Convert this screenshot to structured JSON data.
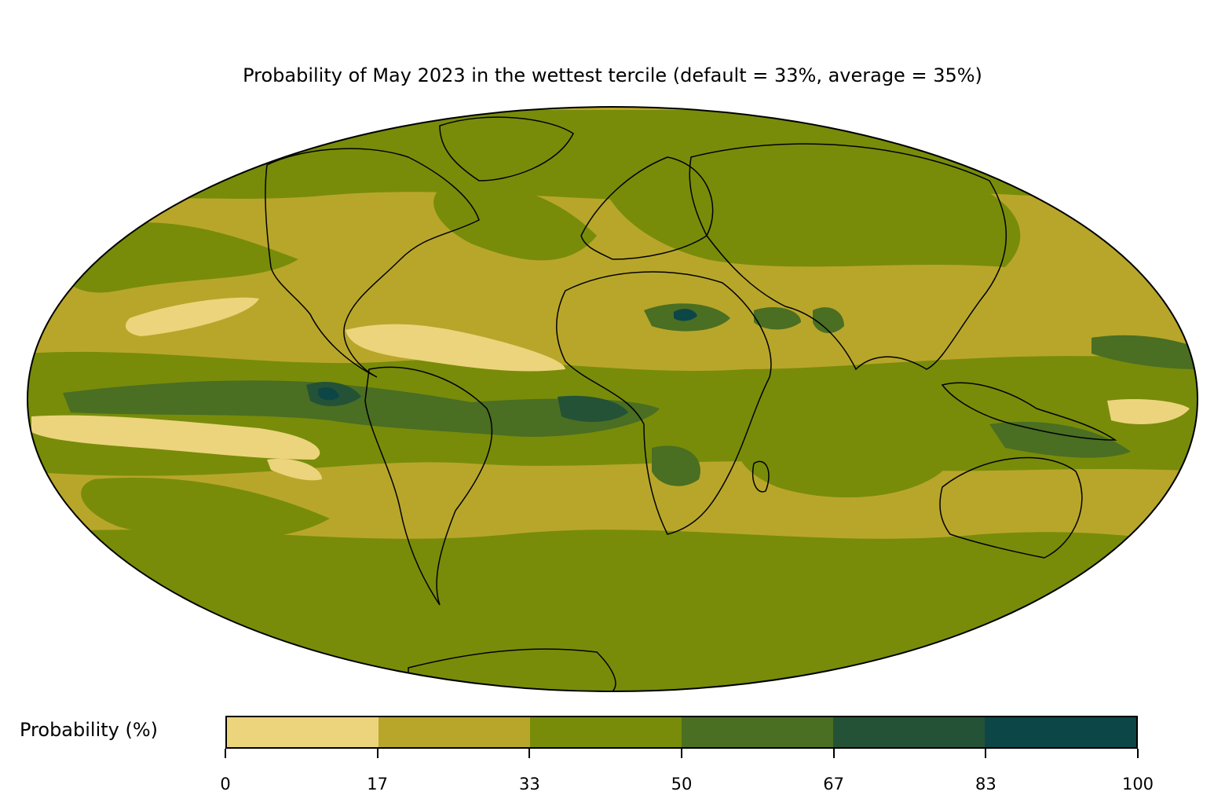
{
  "title": "Probability of May 2023 in the wettest tercile (default = 33%, average = 35%)",
  "colorbar": {
    "label": "Probability (%)",
    "ticks": [
      "0",
      "17",
      "33",
      "50",
      "67",
      "83",
      "100"
    ],
    "bins": [
      {
        "range": [
          0,
          17
        ],
        "color": "#ecd47c"
      },
      {
        "range": [
          17,
          33
        ],
        "color": "#b8a62a"
      },
      {
        "range": [
          33,
          50
        ],
        "color": "#788c0a"
      },
      {
        "range": [
          50,
          67
        ],
        "color": "#4a6e22"
      },
      {
        "range": [
          67,
          83
        ],
        "color": "#245236"
      },
      {
        "range": [
          83,
          100
        ],
        "color": "#0d4646"
      }
    ]
  },
  "map": {
    "projection": "mollweide",
    "base_color": "#b8a62a",
    "coastline_color": "#000000",
    "border_color": "#888888"
  }
}
